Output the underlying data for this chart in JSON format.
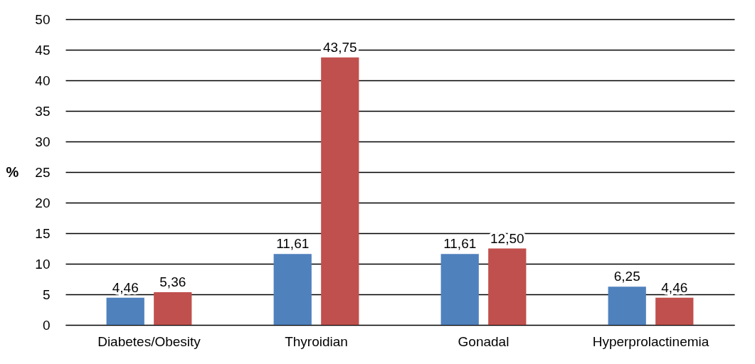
{
  "chart_data": {
    "type": "bar",
    "ylabel": "%",
    "categories": [
      "Diabetes/Obesity",
      "Thyroidian",
      "Gonadal",
      "Hyperprolactinemia"
    ],
    "series": [
      {
        "color": "#4f81bd",
        "values": [
          4.46,
          11.61,
          11.61,
          6.25
        ],
        "value_labels": [
          "4,46",
          "11,61",
          "11,61",
          "6,25"
        ]
      },
      {
        "color": "#c0504d",
        "values": [
          5.36,
          43.75,
          12.5,
          4.46
        ],
        "value_labels": [
          "5,36",
          "43,75",
          "12,50",
          "4,46"
        ]
      }
    ],
    "ylim": [
      0,
      50
    ],
    "yticks": [
      0,
      5,
      10,
      15,
      20,
      25,
      30,
      35,
      40,
      45,
      50
    ],
    "grid": "y",
    "legend": false
  }
}
